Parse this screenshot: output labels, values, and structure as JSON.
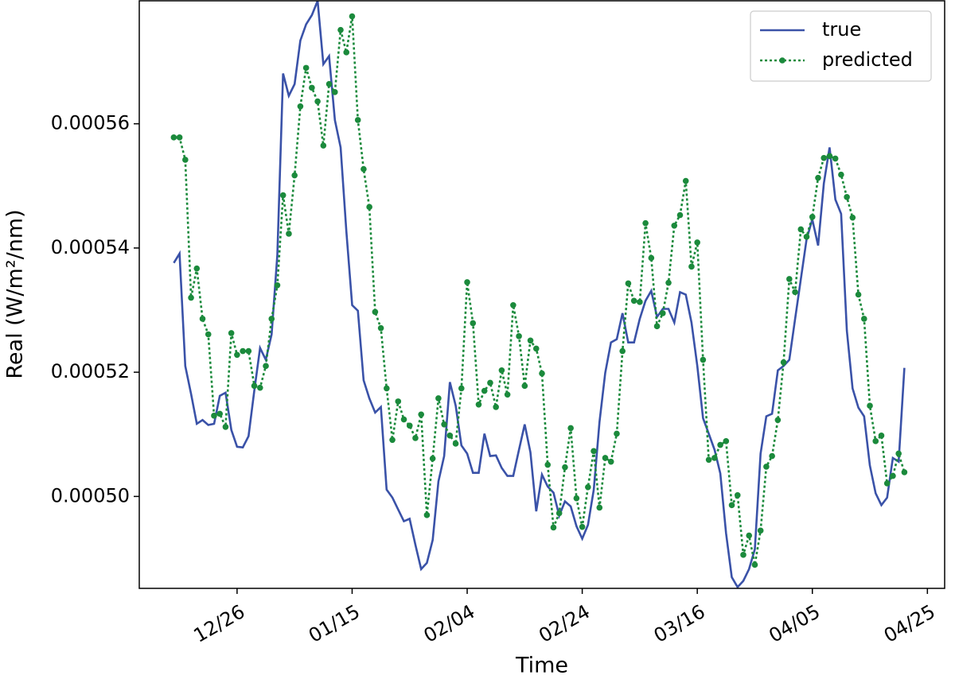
{
  "chart_data": {
    "type": "line",
    "x_label": "Time",
    "y_label": "Real (W/m²/nm)",
    "x": [
      "12/15",
      "12/16",
      "12/17",
      "12/18",
      "12/19",
      "12/20",
      "12/21",
      "12/22",
      "12/23",
      "12/24",
      "12/25",
      "12/26",
      "12/27",
      "12/28",
      "12/29",
      "12/30",
      "12/31",
      "01/01",
      "01/02",
      "01/03",
      "01/04",
      "01/05",
      "01/06",
      "01/07",
      "01/08",
      "01/09",
      "01/10",
      "01/11",
      "01/12",
      "01/13",
      "01/14",
      "01/15",
      "01/16",
      "01/17",
      "01/18",
      "01/19",
      "01/20",
      "01/21",
      "01/22",
      "01/23",
      "01/24",
      "01/25",
      "01/26",
      "01/27",
      "01/28",
      "01/29",
      "01/30",
      "01/31",
      "02/01",
      "02/02",
      "02/03",
      "02/04",
      "02/05",
      "02/06",
      "02/07",
      "02/08",
      "02/09",
      "02/10",
      "02/11",
      "02/12",
      "02/13",
      "02/14",
      "02/15",
      "02/16",
      "02/17",
      "02/18",
      "02/19",
      "02/20",
      "02/21",
      "02/22",
      "02/23",
      "02/24",
      "02/25",
      "02/26",
      "02/27",
      "02/28",
      "03/01",
      "03/02",
      "03/03",
      "03/04",
      "03/05",
      "03/06",
      "03/07",
      "03/08",
      "03/09",
      "03/10",
      "03/11",
      "03/12",
      "03/13",
      "03/14",
      "03/15",
      "03/16",
      "03/17",
      "03/18",
      "03/19",
      "03/20",
      "03/21",
      "03/22",
      "03/23",
      "03/24",
      "03/25",
      "03/26",
      "03/27",
      "03/28",
      "03/29",
      "03/30",
      "03/31",
      "04/01",
      "04/02",
      "04/03",
      "04/04",
      "04/05",
      "04/06",
      "04/07",
      "04/08",
      "04/09",
      "04/10",
      "04/11",
      "04/12",
      "04/13",
      "04/14",
      "04/15",
      "04/16",
      "04/17",
      "04/18",
      "04/19",
      "04/20",
      "04/21"
    ],
    "series": [
      {
        "name": "true",
        "color": "#3a52a8",
        "style": "solid",
        "markers": false,
        "values": [
          0.0005376,
          0.0005391,
          0.000521,
          0.0005165,
          0.0005117,
          0.0005123,
          0.0005115,
          0.0005117,
          0.0005162,
          0.0005167,
          0.0005107,
          0.000508,
          0.0005079,
          0.0005097,
          0.0005171,
          0.0005239,
          0.000522,
          0.0005261,
          0.0005389,
          0.0005681,
          0.0005645,
          0.0005664,
          0.0005734,
          0.000576,
          0.0005775,
          0.0005798,
          0.0005696,
          0.0005709,
          0.0005606,
          0.0005562,
          0.0005427,
          0.0005308,
          0.0005299,
          0.0005187,
          0.0005158,
          0.0005135,
          0.0005144,
          0.0005011,
          0.0004998,
          0.0004979,
          0.000496,
          0.0004964,
          0.0004922,
          0.0004883,
          0.0004893,
          0.000493,
          0.0005024,
          0.0005065,
          0.0005184,
          0.0005146,
          0.0005082,
          0.0005069,
          0.0005038,
          0.0005038,
          0.0005101,
          0.0005065,
          0.0005066,
          0.0005046,
          0.0005033,
          0.0005033,
          0.0005075,
          0.0005116,
          0.0005071,
          0.0004976,
          0.0005035,
          0.0005016,
          0.0005006,
          0.0004969,
          0.0004992,
          0.0004984,
          0.0004952,
          0.0004932,
          0.0004954,
          0.0005011,
          0.000512,
          0.0005199,
          0.0005248,
          0.0005253,
          0.0005295,
          0.0005248,
          0.0005248,
          0.0005286,
          0.0005315,
          0.0005331,
          0.0005289,
          0.0005302,
          0.0005302,
          0.000528,
          0.0005329,
          0.0005325,
          0.000528,
          0.000521,
          0.0005126,
          0.0005101,
          0.0005075,
          0.0005037,
          0.0004941,
          0.000487,
          0.0004854,
          0.0004864,
          0.0004883,
          0.0004915,
          0.0005069,
          0.0005129,
          0.0005133,
          0.0005203,
          0.000521,
          0.000522,
          0.0005286,
          0.000535,
          0.0005414,
          0.0005446,
          0.0005404,
          0.0005504,
          0.0005562,
          0.0005478,
          0.0005455,
          0.0005267,
          0.0005174,
          0.0005143,
          0.0005129,
          0.000505,
          0.0005005,
          0.0004986,
          0.0004998,
          0.0005062,
          0.0005056,
          0.0005207
        ]
      },
      {
        "name": "predicted",
        "color": "#1b8a3c",
        "style": "dotted",
        "markers": true,
        "values": [
          0.0005578,
          0.0005578,
          0.0005542,
          0.000532,
          0.0005367,
          0.0005286,
          0.0005261,
          0.000513,
          0.0005133,
          0.0005112,
          0.0005263,
          0.0005228,
          0.0005234,
          0.0005234,
          0.0005178,
          0.0005175,
          0.000521,
          0.0005286,
          0.000534,
          0.0005485,
          0.0005423,
          0.0005517,
          0.0005628,
          0.000569,
          0.0005658,
          0.0005636,
          0.0005565,
          0.0005664,
          0.0005651,
          0.0005751,
          0.0005715,
          0.0005773,
          0.0005606,
          0.0005527,
          0.0005466,
          0.0005297,
          0.0005271,
          0.0005174,
          0.0005091,
          0.0005153,
          0.0005124,
          0.0005114,
          0.0005094,
          0.0005132,
          0.000497,
          0.0005061,
          0.0005158,
          0.0005116,
          0.0005098,
          0.0005085,
          0.0005174,
          0.0005345,
          0.0005279,
          0.0005148,
          0.000517,
          0.0005183,
          0.0005144,
          0.0005203,
          0.0005164,
          0.0005308,
          0.0005258,
          0.0005178,
          0.0005251,
          0.0005238,
          0.0005198,
          0.0005051,
          0.000495,
          0.0004973,
          0.0005047,
          0.000511,
          0.0004997,
          0.0004951,
          0.0005015,
          0.0005073,
          0.0004982,
          0.0005062,
          0.0005056,
          0.0005101,
          0.0005234,
          0.0005343,
          0.0005315,
          0.0005313,
          0.000544,
          0.0005384,
          0.0005274,
          0.0005295,
          0.0005344,
          0.0005436,
          0.0005453,
          0.0005508,
          0.000537,
          0.0005409,
          0.000522,
          0.0005059,
          0.0005062,
          0.0005083,
          0.0005089,
          0.0004986,
          0.0005002,
          0.0004906,
          0.0004937,
          0.000489,
          0.0004945,
          0.0005048,
          0.0005065,
          0.0005123,
          0.0005216,
          0.000535,
          0.0005329,
          0.000543,
          0.0005418,
          0.000545,
          0.0005513,
          0.0005545,
          0.0005548,
          0.0005544,
          0.0005518,
          0.0005482,
          0.0005449,
          0.0005325,
          0.0005286,
          0.0005146,
          0.0005089,
          0.0005098,
          0.0005021,
          0.0005033,
          0.0005069,
          0.0005039
        ]
      }
    ],
    "xlim": [
      "12/09",
      "04/28"
    ],
    "xticks": [
      "12/26",
      "01/15",
      "02/04",
      "02/24",
      "03/16",
      "04/05",
      "04/25"
    ],
    "ylim": [
      0.0004852,
      0.0005798
    ],
    "yticks": [
      {
        "value": 0.0005,
        "label": "0.00050"
      },
      0.00052,
      0.00054,
      0.00056
    ],
    "legend": "upper right",
    "grid": false
  }
}
